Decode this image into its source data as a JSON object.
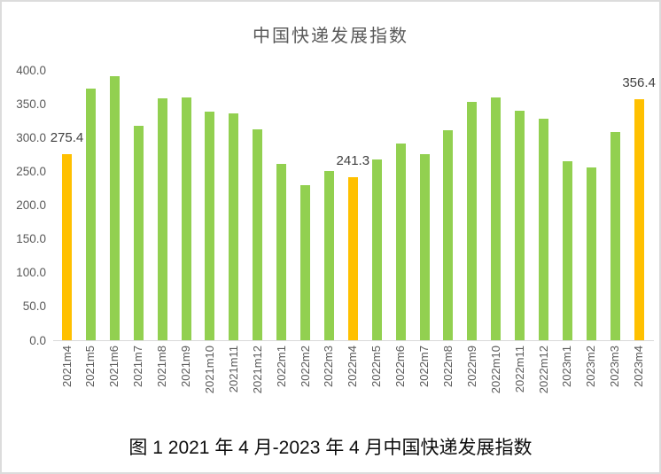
{
  "figure": {
    "caption": "图 1  2021 年 4 月-2023 年 4 月中国快递发展指数"
  },
  "chart_data": {
    "type": "bar",
    "title": "中国快递发展指数",
    "xlabel": "",
    "ylabel": "",
    "categories": [
      "2021m4",
      "2021m5",
      "2021m6",
      "2021m7",
      "2021m8",
      "2021m9",
      "2021m10",
      "2021m11",
      "2021m12",
      "2022m1",
      "2022m2",
      "2022m3",
      "2022m4",
      "2022m5",
      "2022m6",
      "2022m7",
      "2022m8",
      "2022m9",
      "2022m10",
      "2022m11",
      "2022m12",
      "2023m1",
      "2023m2",
      "2023m3",
      "2023m4"
    ],
    "values": [
      275.4,
      372,
      391,
      318,
      358,
      360,
      338,
      336,
      312,
      261,
      230,
      251,
      241.3,
      268,
      291,
      276,
      311,
      353,
      359,
      340,
      328,
      265,
      256,
      308,
      356.4
    ],
    "highlight_indices": [
      0,
      12,
      24
    ],
    "data_labels": {
      "0": "275.4",
      "12": "241.3",
      "24": "356.4"
    },
    "ylim": [
      0,
      400
    ],
    "ytick_step": 50,
    "ytick_labels": [
      "0.0",
      "50.0",
      "100.0",
      "150.0",
      "200.0",
      "250.0",
      "300.0",
      "350.0",
      "400.0"
    ],
    "grid": false,
    "legend": "none",
    "bar_color": "#92D050",
    "highlight_color": "#FFC000",
    "title_color": "#595959",
    "axis_text_color": "#595959",
    "data_label_color": "#404040",
    "axis_line_color": "#d9d9d9"
  }
}
